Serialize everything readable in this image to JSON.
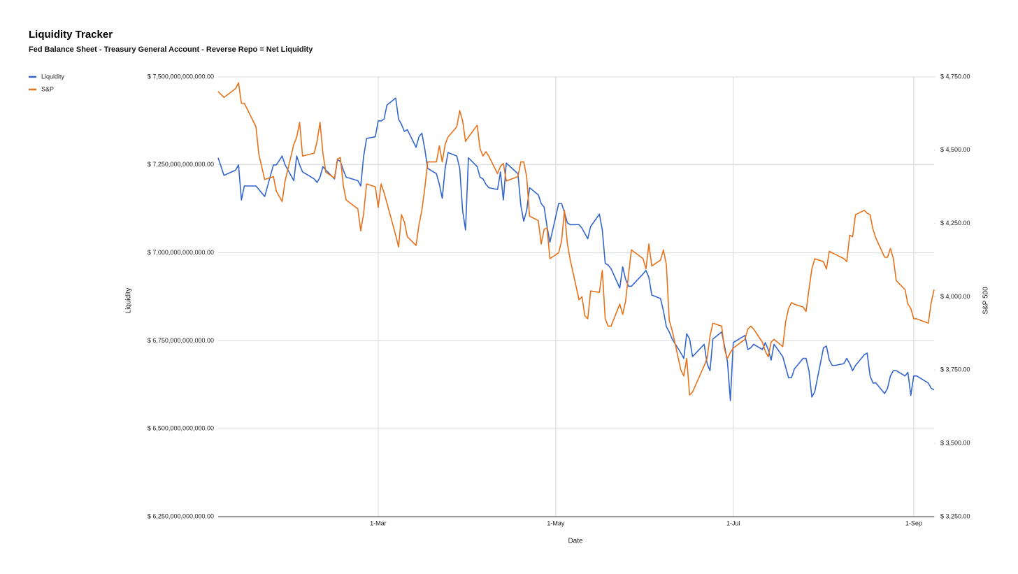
{
  "chart_data": {
    "type": "line",
    "title": "Liquidity Tracker",
    "subtitle": "Fed Balance Sheet - Treasury General Account - Reverse Repo = Net Liquidity",
    "xlabel": "Date",
    "ylabel": "Liquidity",
    "y2label": "S&P 500",
    "legend": "left",
    "grid": true,
    "x": [
      "5-Jan",
      "7-Jan",
      "11-Jan",
      "12-Jan",
      "13-Jan",
      "14-Jan",
      "18-Jan",
      "19-Jan",
      "21-Jan",
      "24-Jan",
      "25-Jan",
      "27-Jan",
      "28-Jan",
      "31-Jan",
      "1-Feb",
      "2-Feb",
      "3-Feb",
      "7-Feb",
      "8-Feb",
      "9-Feb",
      "10-Feb",
      "11-Feb",
      "14-Feb",
      "15-Feb",
      "16-Feb",
      "17-Feb",
      "18-Feb",
      "22-Feb",
      "23-Feb",
      "24-Feb",
      "25-Feb",
      "28-Feb",
      "1-Mar",
      "2-Mar",
      "3-Mar",
      "4-Mar",
      "7-Mar",
      "8-Mar",
      "9-Mar",
      "10-Mar",
      "11-Mar",
      "14-Mar",
      "15-Mar",
      "16-Mar",
      "17-Mar",
      "18-Mar",
      "21-Mar",
      "22-Mar",
      "23-Mar",
      "24-Mar",
      "25-Mar",
      "28-Mar",
      "29-Mar",
      "30-Mar",
      "31-Mar",
      "1-Apr",
      "4-Apr",
      "5-Apr",
      "6-Apr",
      "7-Apr",
      "8-Apr",
      "11-Apr",
      "12-Apr",
      "13-Apr",
      "14-Apr",
      "18-Apr",
      "19-Apr",
      "20-Apr",
      "21-Apr",
      "22-Apr",
      "25-Apr",
      "26-Apr",
      "27-Apr",
      "28-Apr",
      "29-Apr",
      "2-May",
      "3-May",
      "4-May",
      "5-May",
      "6-May",
      "9-May",
      "10-May",
      "11-May",
      "12-May",
      "13-May",
      "16-May",
      "17-May",
      "18-May",
      "19-May",
      "20-May",
      "23-May",
      "24-May",
      "25-May",
      "26-May",
      "27-May",
      "31-May",
      "1-Jun",
      "2-Jun",
      "3-Jun",
      "6-Jun",
      "7-Jun",
      "8-Jun",
      "9-Jun",
      "10-Jun",
      "13-Jun",
      "14-Jun",
      "15-Jun",
      "16-Jun",
      "17-Jun",
      "21-Jun",
      "22-Jun",
      "23-Jun",
      "24-Jun",
      "27-Jun",
      "28-Jun",
      "29-Jun",
      "30-Jun",
      "1-Jul",
      "5-Jul",
      "6-Jul",
      "7-Jul",
      "8-Jul",
      "11-Jul",
      "12-Jul",
      "13-Jul",
      "14-Jul",
      "15-Jul",
      "18-Jul",
      "19-Jul",
      "20-Jul",
      "21-Jul",
      "22-Jul",
      "25-Jul",
      "26-Jul",
      "27-Jul",
      "28-Jul",
      "29-Jul",
      "1-Aug",
      "2-Aug",
      "3-Aug",
      "4-Aug",
      "5-Aug",
      "8-Aug",
      "9-Aug",
      "10-Aug",
      "11-Aug",
      "12-Aug",
      "15-Aug",
      "16-Aug",
      "17-Aug",
      "18-Aug",
      "19-Aug",
      "22-Aug",
      "23-Aug",
      "24-Aug",
      "25-Aug",
      "26-Aug",
      "29-Aug",
      "30-Aug",
      "31-Aug",
      "1-Sep",
      "2-Sep",
      "6-Sep",
      "7-Sep",
      "8-Sep"
    ],
    "xlim": [
      "5-Jan",
      "8-Sep"
    ],
    "xticks": [
      "1-Mar",
      "1-May",
      "1-Jul",
      "1-Sep"
    ],
    "ylim": [
      6250000000000.0,
      7500000000000.0
    ],
    "yticks": [
      {
        "value": 6250000000000.0,
        "label": "$ 6,250,000,000,000.00"
      },
      {
        "value": 6500000000000.0,
        "label": "$ 6,500,000,000,000.00"
      },
      {
        "value": 6750000000000.0,
        "label": "$ 6,750,000,000,000.00"
      },
      {
        "value": 7000000000000.0,
        "label": "$ 7,000,000,000,000.00"
      },
      {
        "value": 7250000000000.0,
        "label": "$ 7,250,000,000,000.00"
      },
      {
        "value": 7500000000000.0,
        "label": "$ 7,500,000,000,000.00"
      }
    ],
    "y2lim": [
      3250,
      4750
    ],
    "y2ticks": [
      {
        "value": 3250,
        "label": "$ 3,250.00"
      },
      {
        "value": 3500,
        "label": "$ 3,500.00"
      },
      {
        "value": 3750,
        "label": "$ 3,750.00"
      },
      {
        "value": 4000,
        "label": "$ 4,000.00"
      },
      {
        "value": 4250,
        "label": "$ 4,250.00"
      },
      {
        "value": 4500,
        "label": "$ 4,500.00"
      },
      {
        "value": 4750,
        "label": "$ 4,750.00"
      }
    ],
    "series": [
      {
        "name": "Liquidity",
        "color": "#3366cc",
        "values": [
          7270000000000.0,
          7220000000000.0,
          7235000000000.0,
          7250000000000.0,
          7150000000000.0,
          7190000000000.0,
          7190000000000.0,
          7180000000000.0,
          7160000000000.0,
          7250000000000.0,
          7250000000000.0,
          7275000000000.0,
          7250000000000.0,
          7205000000000.0,
          7275000000000.0,
          7250000000000.0,
          7230000000000.0,
          7210000000000.0,
          7200000000000.0,
          7215000000000.0,
          7245000000000.0,
          7235000000000.0,
          7210000000000.0,
          7265000000000.0,
          7260000000000.0,
          7235000000000.0,
          7215000000000.0,
          7205000000000.0,
          7190000000000.0,
          7275000000000.0,
          7325000000000.0,
          7330000000000.0,
          7375000000000.0,
          7375000000000.0,
          7380000000000.0,
          7420000000000.0,
          7440000000000.0,
          7380000000000.0,
          7365000000000.0,
          7345000000000.0,
          7350000000000.0,
          7300000000000.0,
          7330000000000.0,
          7340000000000.0,
          7295000000000.0,
          7240000000000.0,
          7225000000000.0,
          7195000000000.0,
          7155000000000.0,
          7240000000000.0,
          7285000000000.0,
          7275000000000.0,
          7240000000000.0,
          7120000000000.0,
          7065000000000.0,
          7270000000000.0,
          7245000000000.0,
          7215000000000.0,
          7210000000000.0,
          7195000000000.0,
          7185000000000.0,
          7180000000000.0,
          7230000000000.0,
          7150000000000.0,
          7255000000000.0,
          7225000000000.0,
          7135000000000.0,
          7090000000000.0,
          7120000000000.0,
          7185000000000.0,
          7165000000000.0,
          7140000000000.0,
          7130000000000.0,
          7075000000000.0,
          7030000000000.0,
          7140000000000.0,
          7140000000000.0,
          7115000000000.0,
          7085000000000.0,
          7080000000000.0,
          7080000000000.0,
          7070000000000.0,
          7055000000000.0,
          7040000000000.0,
          7075000000000.0,
          7110000000000.0,
          7065000000000.0,
          6970000000000.0,
          6965000000000.0,
          6955000000000.0,
          6900000000000.0,
          6960000000000.0,
          6925000000000.0,
          6905000000000.0,
          6905000000000.0,
          6940000000000.0,
          6950000000000.0,
          6930000000000.0,
          6880000000000.0,
          6870000000000.0,
          6835000000000.0,
          6790000000000.0,
          6775000000000.0,
          6755000000000.0,
          6715000000000.0,
          6700000000000.0,
          6770000000000.0,
          6755000000000.0,
          6705000000000.0,
          6740000000000.0,
          6685000000000.0,
          6665000000000.0,
          6755000000000.0,
          6775000000000.0,
          6735000000000.0,
          6690000000000.0,
          6580000000000.0,
          6745000000000.0,
          6765000000000.0,
          6725000000000.0,
          6730000000000.0,
          6740000000000.0,
          6725000000000.0,
          6745000000000.0,
          6725000000000.0,
          6695000000000.0,
          6740000000000.0,
          6705000000000.0,
          6675000000000.0,
          6645000000000.0,
          6645000000000.0,
          6670000000000.0,
          6700000000000.0,
          6700000000000.0,
          6665000000000.0,
          6590000000000.0,
          6605000000000.0,
          6730000000000.0,
          6735000000000.0,
          6695000000000.0,
          6680000000000.0,
          6680000000000.0,
          6685000000000.0,
          6700000000000.0,
          6685000000000.0,
          6665000000000.0,
          6680000000000.0,
          6710000000000.0,
          6715000000000.0,
          6650000000000.0,
          6630000000000.0,
          6630000000000.0,
          6600000000000.0,
          6615000000000.0,
          6650000000000.0,
          6665000000000.0,
          6665000000000.0,
          6650000000000.0,
          6660000000000.0,
          6595000000000.0,
          6650000000000.0,
          6650000000000.0,
          6630000000000.0,
          6615000000000.0,
          6610000000000.0
        ]
      },
      {
        "name": "S&P",
        "color": "#e8711a",
        "axis": "y2",
        "values": [
          4700,
          4680,
          4710,
          4730,
          4660,
          4660,
          4580,
          4485,
          4400,
          4410,
          4360,
          4325,
          4395,
          4520,
          4545,
          4595,
          4480,
          4490,
          4530,
          4595,
          4490,
          4425,
          4405,
          4470,
          4475,
          4380,
          4330,
          4300,
          4225,
          4285,
          4385,
          4375,
          4305,
          4385,
          4355,
          4320,
          4210,
          4170,
          4280,
          4255,
          4205,
          4175,
          4245,
          4295,
          4370,
          4460,
          4460,
          4515,
          4460,
          4520,
          4545,
          4580,
          4635,
          4600,
          4530,
          4545,
          4585,
          4505,
          4480,
          4495,
          4480,
          4420,
          4445,
          4455,
          4395,
          4410,
          4460,
          4460,
          4410,
          4275,
          4260,
          4180,
          4230,
          4235,
          4130,
          4150,
          4190,
          4295,
          4180,
          4125,
          3990,
          4000,
          3935,
          3925,
          4020,
          4015,
          4090,
          3925,
          3900,
          3900,
          3975,
          3940,
          3985,
          4075,
          4160,
          4130,
          4095,
          4180,
          4105,
          4125,
          4160,
          4110,
          3920,
          3885,
          3750,
          3730,
          3790,
          3665,
          3675,
          3765,
          3790,
          3865,
          3910,
          3900,
          3820,
          3790,
          3810,
          3825,
          3855,
          3890,
          3900,
          3890,
          3845,
          3815,
          3795,
          3845,
          3855,
          3830,
          3915,
          3960,
          3980,
          3975,
          3965,
          3950,
          4025,
          4095,
          4130,
          4120,
          4095,
          4155,
          4150,
          4145,
          4130,
          4120,
          4210,
          4205,
          4280,
          4295,
          4285,
          4280,
          4230,
          4200,
          4135,
          4135,
          4165,
          4130,
          4055,
          4025,
          3975,
          3960,
          3925,
          3925,
          3910,
          3980,
          4025
        ]
      }
    ]
  }
}
